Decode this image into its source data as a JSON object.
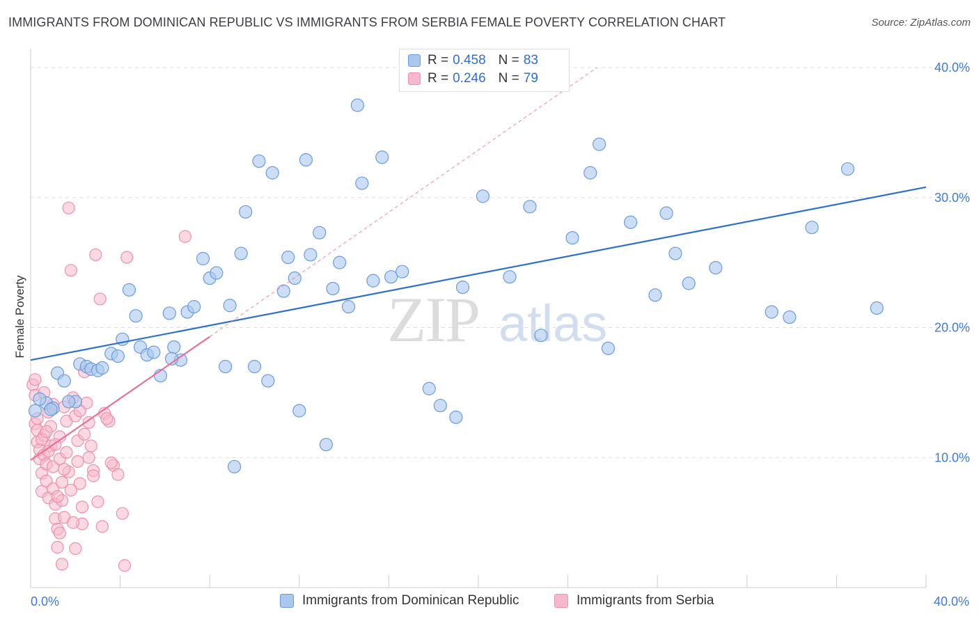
{
  "title": "IMMIGRANTS FROM DOMINICAN REPUBLIC VS IMMIGRANTS FROM SERBIA FEMALE POVERTY CORRELATION CHART",
  "source": "Source: ZipAtlas.com",
  "watermark": {
    "zip": "ZIP",
    "atlas": "atlas"
  },
  "legend": {
    "rows": [
      {
        "r_label": "R =",
        "r_value": "0.458",
        "n_label": "N =",
        "n_value": "83"
      },
      {
        "r_label": "R =",
        "r_value": "0.246",
        "n_label": "N =",
        "n_value": "79"
      }
    ]
  },
  "colors": {
    "blue_fill": "#aac8ee",
    "blue_stroke": "#6a9bdc",
    "blue_line": "#2c6fd1",
    "pink_fill": "#f6b9cc",
    "pink_stroke": "#ee8fad",
    "pink_line": "#e8709a",
    "grid": "#dddddd",
    "tick_text": "#3d7bd6"
  },
  "chart_data": {
    "type": "scatter",
    "ylabel": "Female Poverty",
    "xlim": [
      0,
      40
    ],
    "ylim": [
      0,
      40
    ],
    "x_tick_labels": [
      {
        "value": 0,
        "label": "0.0%"
      },
      {
        "value": 40,
        "label": "40.0%"
      }
    ],
    "y_tick_labels": [
      {
        "value": 10,
        "label": "10.0%"
      },
      {
        "value": 20,
        "label": "20.0%"
      },
      {
        "value": 30,
        "label": "30.0%"
      },
      {
        "value": 40,
        "label": "40.0%"
      }
    ],
    "grid": true,
    "legend_position": "top-center",
    "series": [
      {
        "name": "Immigrants from Dominican Republic",
        "trend": {
          "x": [
            0,
            40
          ],
          "y": [
            17.5,
            30.8
          ],
          "style": "solid"
        },
        "points": [
          [
            0.2,
            13.6
          ],
          [
            0.7,
            14.2
          ],
          [
            1.0,
            13.8
          ],
          [
            1.2,
            16.5
          ],
          [
            1.5,
            15.9
          ],
          [
            2.0,
            14.3
          ],
          [
            2.2,
            17.2
          ],
          [
            2.5,
            17.0
          ],
          [
            2.7,
            16.8
          ],
          [
            3.0,
            16.7
          ],
          [
            3.2,
            16.9
          ],
          [
            3.6,
            18.0
          ],
          [
            3.9,
            17.8
          ],
          [
            4.1,
            19.1
          ],
          [
            4.4,
            22.9
          ],
          [
            4.7,
            20.9
          ],
          [
            4.9,
            18.5
          ],
          [
            5.2,
            17.9
          ],
          [
            5.5,
            18.1
          ],
          [
            5.8,
            16.3
          ],
          [
            6.2,
            21.1
          ],
          [
            6.4,
            18.5
          ],
          [
            6.7,
            17.5
          ],
          [
            7.0,
            21.2
          ],
          [
            7.3,
            21.6
          ],
          [
            7.7,
            25.3
          ],
          [
            8.0,
            23.8
          ],
          [
            8.3,
            24.2
          ],
          [
            8.7,
            17.0
          ],
          [
            8.9,
            21.7
          ],
          [
            9.1,
            9.3
          ],
          [
            9.4,
            25.7
          ],
          [
            9.6,
            28.9
          ],
          [
            10.0,
            17.0
          ],
          [
            10.2,
            32.8
          ],
          [
            10.6,
            15.9
          ],
          [
            10.8,
            31.9
          ],
          [
            11.3,
            22.8
          ],
          [
            11.5,
            25.4
          ],
          [
            11.8,
            23.8
          ],
          [
            12.0,
            13.6
          ],
          [
            12.3,
            32.9
          ],
          [
            12.5,
            25.6
          ],
          [
            12.9,
            27.3
          ],
          [
            13.2,
            11.0
          ],
          [
            13.5,
            23.0
          ],
          [
            13.8,
            25.0
          ],
          [
            14.2,
            21.6
          ],
          [
            14.6,
            37.1
          ],
          [
            14.8,
            31.1
          ],
          [
            15.3,
            23.6
          ],
          [
            15.7,
            33.1
          ],
          [
            16.1,
            23.9
          ],
          [
            16.6,
            24.3
          ],
          [
            17.3,
            38.8
          ],
          [
            17.8,
            15.3
          ],
          [
            18.3,
            14.0
          ],
          [
            19.0,
            13.1
          ],
          [
            19.3,
            23.1
          ],
          [
            20.2,
            30.1
          ],
          [
            21.4,
            23.9
          ],
          [
            22.0,
            39.5
          ],
          [
            22.3,
            29.3
          ],
          [
            22.8,
            19.4
          ],
          [
            24.2,
            26.9
          ],
          [
            25.0,
            31.9
          ],
          [
            25.4,
            34.1
          ],
          [
            25.8,
            18.4
          ],
          [
            26.8,
            28.1
          ],
          [
            27.9,
            22.5
          ],
          [
            28.4,
            28.8
          ],
          [
            28.8,
            25.7
          ],
          [
            29.4,
            23.4
          ],
          [
            30.6,
            24.6
          ],
          [
            33.1,
            21.2
          ],
          [
            33.9,
            20.8
          ],
          [
            34.9,
            27.7
          ],
          [
            36.5,
            32.2
          ],
          [
            37.8,
            21.5
          ],
          [
            0.4,
            14.5
          ],
          [
            1.7,
            14.3
          ],
          [
            6.3,
            17.6
          ],
          [
            0.9,
            13.7
          ]
        ]
      },
      {
        "name": "Immigrants from Serbia",
        "trend": {
          "x": [
            0,
            8.0
          ],
          "y": [
            9.8,
            19.3
          ],
          "style": "solid",
          "extension": {
            "x": [
              8.0,
              25.3
            ],
            "y": [
              19.3,
              40.0
            ],
            "style": "dashed"
          }
        },
        "points": [
          [
            0.1,
            15.6
          ],
          [
            0.2,
            14.8
          ],
          [
            0.2,
            12.6
          ],
          [
            0.3,
            12.1
          ],
          [
            0.3,
            11.2
          ],
          [
            0.4,
            10.6
          ],
          [
            0.4,
            9.9
          ],
          [
            0.5,
            8.8
          ],
          [
            0.5,
            7.4
          ],
          [
            0.6,
            11.7
          ],
          [
            0.6,
            10.2
          ],
          [
            0.7,
            9.5
          ],
          [
            0.7,
            8.2
          ],
          [
            0.8,
            6.9
          ],
          [
            0.8,
            13.5
          ],
          [
            0.9,
            12.4
          ],
          [
            0.9,
            10.9
          ],
          [
            1.0,
            9.3
          ],
          [
            1.0,
            7.6
          ],
          [
            1.1,
            6.4
          ],
          [
            1.1,
            5.3
          ],
          [
            1.2,
            4.5
          ],
          [
            1.2,
            3.1
          ],
          [
            1.3,
            11.6
          ],
          [
            1.3,
            9.9
          ],
          [
            1.4,
            8.1
          ],
          [
            1.4,
            6.7
          ],
          [
            1.5,
            5.4
          ],
          [
            1.5,
            13.9
          ],
          [
            1.6,
            12.8
          ],
          [
            1.6,
            10.4
          ],
          [
            1.7,
            8.9
          ],
          [
            1.7,
            29.2
          ],
          [
            1.8,
            24.4
          ],
          [
            1.9,
            14.6
          ],
          [
            2.0,
            13.2
          ],
          [
            2.1,
            11.3
          ],
          [
            2.1,
            9.7
          ],
          [
            2.2,
            8.0
          ],
          [
            2.3,
            6.2
          ],
          [
            2.3,
            4.9
          ],
          [
            2.4,
            16.6
          ],
          [
            2.5,
            14.2
          ],
          [
            2.6,
            12.7
          ],
          [
            2.7,
            10.9
          ],
          [
            2.8,
            9.0
          ],
          [
            2.9,
            25.6
          ],
          [
            3.1,
            22.2
          ],
          [
            3.3,
            13.4
          ],
          [
            3.5,
            12.8
          ],
          [
            3.7,
            9.4
          ],
          [
            3.9,
            8.7
          ],
          [
            4.1,
            5.7
          ],
          [
            4.2,
            1.7
          ],
          [
            4.3,
            25.4
          ],
          [
            6.9,
            27.0
          ],
          [
            0.3,
            13.0
          ],
          [
            0.5,
            11.4
          ],
          [
            0.6,
            15.0
          ],
          [
            0.7,
            12.0
          ],
          [
            0.8,
            10.5
          ],
          [
            1.0,
            14.1
          ],
          [
            1.1,
            11.0
          ],
          [
            1.2,
            7.0
          ],
          [
            1.3,
            4.2
          ],
          [
            1.4,
            1.8
          ],
          [
            1.5,
            9.1
          ],
          [
            1.8,
            7.5
          ],
          [
            1.9,
            5.0
          ],
          [
            2.0,
            3.0
          ],
          [
            2.2,
            13.6
          ],
          [
            2.4,
            11.8
          ],
          [
            2.6,
            10.0
          ],
          [
            2.8,
            8.6
          ],
          [
            3.0,
            6.6
          ],
          [
            3.2,
            4.7
          ],
          [
            3.4,
            13.0
          ],
          [
            3.6,
            9.6
          ],
          [
            0.2,
            16.0
          ]
        ]
      }
    ]
  }
}
